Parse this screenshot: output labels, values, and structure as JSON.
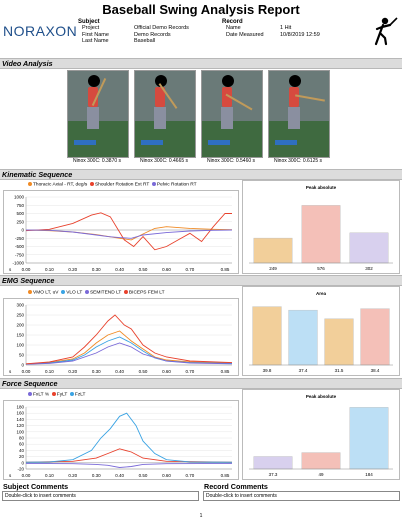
{
  "report": {
    "title": "Baseball Swing Analysis Report",
    "logo": "NORAXON",
    "page_number": "1"
  },
  "subject": {
    "heading": "Subject",
    "rows": [
      {
        "label": "Project",
        "value": "Official Demo Records"
      },
      {
        "label": "First Name",
        "value": "Demo Records"
      },
      {
        "label": "Last Name",
        "value": "Baseball"
      }
    ]
  },
  "record": {
    "heading": "Record",
    "rows": [
      {
        "label": "Name",
        "value": "1 Hit"
      },
      {
        "label": "Date Measured",
        "value": "10/8/2019 12:59"
      }
    ]
  },
  "sections": {
    "video": "Video Analysis",
    "kinematic": "Kinematic Sequence",
    "emg": "EMG Sequence",
    "force": "Force Sequence",
    "subject_comments": "Subject Comments",
    "record_comments": "Record Comments"
  },
  "video_frames": [
    {
      "caption": "Ninox 300C: 0.3870 s"
    },
    {
      "caption": "Ninox 300C: 0.4665 s"
    },
    {
      "caption": "Ninox 300C: 0.5460 s"
    },
    {
      "caption": "Ninox 300C: 0.6125 s"
    }
  ],
  "comments": {
    "subject_placeholder": "Double-click to insert comments",
    "record_placeholder": "Double-click to insert comments"
  },
  "colors": {
    "orange": "#f08a24",
    "red": "#e8412c",
    "blue": "#3aa3e3",
    "purple": "#7a6ad8",
    "peach": "#f2cf9a",
    "pink": "#f4c0b8",
    "lavender": "#d8d0ee",
    "lightblue": "#bcdff5"
  },
  "chart_data": [
    {
      "id": "kinematic-line",
      "type": "line",
      "title": "",
      "xlabel": "s",
      "x_ticks": [
        "0.00",
        "0.10",
        "0.20",
        "0.30",
        "0.40",
        "0.50",
        "0.60",
        "0.70",
        "0.85"
      ],
      "y_ticks": [
        "1000",
        "750",
        "500",
        "250",
        "0",
        "-250",
        "-500",
        "-750",
        "-1000"
      ],
      "ylim": [
        -1000,
        1000
      ],
      "xlim": [
        0,
        0.88
      ],
      "series": [
        {
          "name": "Thoracic Axial - RT, deg/s",
          "color": "#f08a24",
          "points": [
            [
              0,
              0
            ],
            [
              0.1,
              -20
            ],
            [
              0.2,
              -60
            ],
            [
              0.3,
              -140
            ],
            [
              0.4,
              -250
            ],
            [
              0.45,
              -300
            ],
            [
              0.5,
              -120
            ],
            [
              0.55,
              50
            ],
            [
              0.6,
              100
            ],
            [
              0.7,
              50
            ],
            [
              0.8,
              20
            ],
            [
              0.88,
              10
            ]
          ]
        },
        {
          "name": "Shoulder Rotation Ext RT",
          "color": "#e8412c",
          "points": [
            [
              0,
              -20
            ],
            [
              0.1,
              20
            ],
            [
              0.2,
              200
            ],
            [
              0.28,
              450
            ],
            [
              0.32,
              520
            ],
            [
              0.36,
              400
            ],
            [
              0.42,
              -300
            ],
            [
              0.46,
              -500
            ],
            [
              0.5,
              -200
            ],
            [
              0.55,
              -600
            ],
            [
              0.6,
              -500
            ],
            [
              0.65,
              -300
            ],
            [
              0.7,
              -100
            ],
            [
              0.75,
              -350
            ],
            [
              0.8,
              100
            ],
            [
              0.85,
              500
            ],
            [
              0.88,
              500
            ]
          ]
        },
        {
          "name": "Pelvic Rotation RT",
          "color": "#7a6ad8",
          "points": [
            [
              0,
              0
            ],
            [
              0.1,
              -10
            ],
            [
              0.2,
              -60
            ],
            [
              0.3,
              -150
            ],
            [
              0.35,
              -200
            ],
            [
              0.4,
              -230
            ],
            [
              0.45,
              -250
            ],
            [
              0.5,
              -150
            ],
            [
              0.6,
              -80
            ],
            [
              0.7,
              -30
            ],
            [
              0.8,
              -10
            ],
            [
              0.88,
              0
            ]
          ]
        }
      ]
    },
    {
      "id": "kinematic-bar",
      "type": "bar",
      "title": "Peak absolute",
      "categories": [
        "",
        "",
        ""
      ],
      "values": [
        249,
        576,
        302
      ],
      "value_labels": [
        "249",
        "576",
        "302"
      ],
      "bar_colors": [
        "#f2cf9a",
        "#f4c0b8",
        "#d8d0ee"
      ],
      "ylim": [
        0,
        700
      ]
    },
    {
      "id": "emg-line",
      "type": "line",
      "title": "",
      "xlabel": "s",
      "x_ticks": [
        "0.00",
        "0.10",
        "0.20",
        "0.30",
        "0.40",
        "0.50",
        "0.60",
        "0.70",
        "0.85"
      ],
      "y_ticks": [
        "300",
        "250",
        "200",
        "150",
        "100",
        "50",
        "0"
      ],
      "ylim": [
        0,
        300
      ],
      "xlim": [
        0,
        0.88
      ],
      "series": [
        {
          "name": "VMO LT, uV",
          "color": "#f08a24",
          "points": [
            [
              0,
              5
            ],
            [
              0.1,
              12
            ],
            [
              0.2,
              30
            ],
            [
              0.25,
              60
            ],
            [
              0.3,
              110
            ],
            [
              0.35,
              150
            ],
            [
              0.4,
              170
            ],
            [
              0.45,
              120
            ],
            [
              0.5,
              80
            ],
            [
              0.55,
              40
            ],
            [
              0.6,
              25
            ],
            [
              0.7,
              15
            ],
            [
              0.88,
              10
            ]
          ]
        },
        {
          "name": "VLO LT",
          "color": "#3aa3e3",
          "points": [
            [
              0,
              5
            ],
            [
              0.1,
              10
            ],
            [
              0.2,
              25
            ],
            [
              0.25,
              50
            ],
            [
              0.3,
              90
            ],
            [
              0.35,
              120
            ],
            [
              0.4,
              140
            ],
            [
              0.45,
              110
            ],
            [
              0.5,
              70
            ],
            [
              0.55,
              35
            ],
            [
              0.6,
              20
            ],
            [
              0.7,
              12
            ],
            [
              0.88,
              8
            ]
          ]
        },
        {
          "name": "SEMITEND LT",
          "color": "#7a6ad8",
          "points": [
            [
              0,
              4
            ],
            [
              0.1,
              8
            ],
            [
              0.2,
              20
            ],
            [
              0.3,
              60
            ],
            [
              0.35,
              90
            ],
            [
              0.4,
              110
            ],
            [
              0.45,
              90
            ],
            [
              0.5,
              55
            ],
            [
              0.6,
              20
            ],
            [
              0.7,
              10
            ],
            [
              0.88,
              6
            ]
          ]
        },
        {
          "name": "BICEPS FEM LT",
          "color": "#e8412c",
          "points": [
            [
              0,
              6
            ],
            [
              0.1,
              15
            ],
            [
              0.2,
              40
            ],
            [
              0.25,
              90
            ],
            [
              0.3,
              150
            ],
            [
              0.35,
              220
            ],
            [
              0.38,
              250
            ],
            [
              0.42,
              200
            ],
            [
              0.45,
              180
            ],
            [
              0.5,
              100
            ],
            [
              0.55,
              60
            ],
            [
              0.6,
              40
            ],
            [
              0.7,
              20
            ],
            [
              0.88,
              12
            ]
          ]
        }
      ]
    },
    {
      "id": "emg-bar",
      "type": "bar",
      "title": "Area",
      "categories": [
        "",
        "",
        "",
        ""
      ],
      "values": [
        39.8,
        37.4,
        31.5,
        38.4
      ],
      "value_labels": [
        "39.8",
        "37.4",
        "31.5",
        "38.4"
      ],
      "bar_colors": [
        "#f2cf9a",
        "#bcdff5",
        "#f2cf9a",
        "#f4c0b8"
      ],
      "ylim": [
        0,
        45
      ]
    },
    {
      "id": "force-line",
      "type": "line",
      "title": "",
      "xlabel": "s",
      "x_ticks": [
        "0.00",
        "0.10",
        "0.20",
        "0.30",
        "0.40",
        "0.50",
        "0.60",
        "0.70",
        "0.85"
      ],
      "y_ticks": [
        "180",
        "160",
        "140",
        "120",
        "100",
        "80",
        "60",
        "40",
        "20",
        "0",
        "-20"
      ],
      "ylim": [
        -20,
        180
      ],
      "xlim": [
        0,
        0.88
      ],
      "series": [
        {
          "name": "FxLT %",
          "color": "#7a6ad8",
          "points": [
            [
              0,
              -2
            ],
            [
              0.2,
              -3
            ],
            [
              0.3,
              -5
            ],
            [
              0.35,
              -8
            ],
            [
              0.4,
              -15
            ],
            [
              0.45,
              -12
            ],
            [
              0.5,
              -5
            ],
            [
              0.6,
              -3
            ],
            [
              0.88,
              -2
            ]
          ]
        },
        {
          "name": "FyLT",
          "color": "#e8412c",
          "points": [
            [
              0,
              2
            ],
            [
              0.2,
              5
            ],
            [
              0.3,
              15
            ],
            [
              0.35,
              30
            ],
            [
              0.4,
              45
            ],
            [
              0.45,
              35
            ],
            [
              0.5,
              15
            ],
            [
              0.6,
              5
            ],
            [
              0.88,
              2
            ]
          ]
        },
        {
          "name": "FzLT",
          "color": "#3aa3e3",
          "points": [
            [
              0,
              2
            ],
            [
              0.1,
              3
            ],
            [
              0.2,
              10
            ],
            [
              0.28,
              40
            ],
            [
              0.32,
              80
            ],
            [
              0.36,
              110
            ],
            [
              0.4,
              150
            ],
            [
              0.43,
              160
            ],
            [
              0.47,
              120
            ],
            [
              0.5,
              70
            ],
            [
              0.55,
              30
            ],
            [
              0.6,
              10
            ],
            [
              0.7,
              3
            ],
            [
              0.88,
              2
            ]
          ]
        }
      ]
    },
    {
      "id": "force-bar",
      "type": "bar",
      "title": "Peak absolute",
      "categories": [
        "",
        "",
        ""
      ],
      "values": [
        37.3,
        49,
        184
      ],
      "value_labels": [
        "37.3",
        "49",
        "184"
      ],
      "bar_colors": [
        "#d8d0ee",
        "#f4c0b8",
        "#bcdff5"
      ],
      "ylim": [
        0,
        200
      ]
    }
  ]
}
